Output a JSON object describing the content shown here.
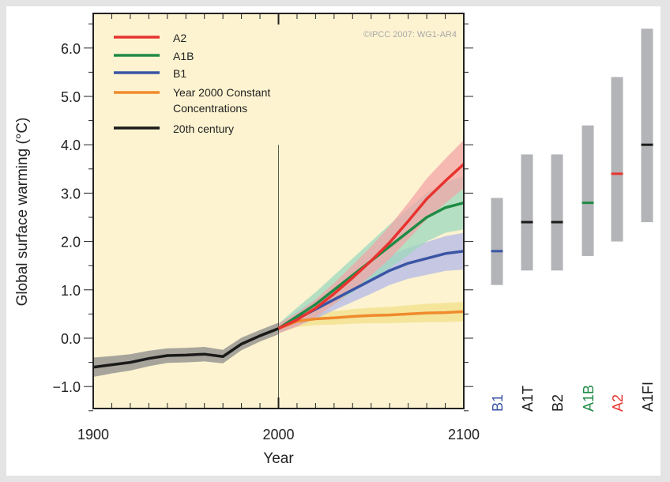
{
  "chart_data": {
    "type": "line",
    "title": "",
    "xlabel": "Year",
    "ylabel": "Global surface warming (°C)",
    "xlim": [
      1900,
      2100
    ],
    "ylim": [
      -1.45,
      6.7
    ],
    "x_ticks": [
      "1900",
      "2000",
      "2100"
    ],
    "y_ticks": [
      {
        "value": 6,
        "label": "6.0"
      },
      {
        "value": 5,
        "label": "5.0"
      },
      {
        "value": 4,
        "label": "4.0"
      },
      {
        "value": 3,
        "label": "3.0"
      },
      {
        "value": 2,
        "label": "2.0"
      },
      {
        "value": 1,
        "label": "1.0"
      },
      {
        "value": 0,
        "label": "0.0"
      },
      {
        "value": -1,
        "label": "−1.0"
      }
    ],
    "copyright": "©IPCC  2007: WG1-AR4",
    "legend_position": "top-left",
    "legend": [
      {
        "label": "A2",
        "color": "#e8332f"
      },
      {
        "label": "A1B",
        "color": "#1f8a45"
      },
      {
        "label": "B1",
        "color": "#3a55a4"
      },
      {
        "label": "Year 2000 Constant",
        "label2": "Concentrations",
        "color": "#f08a2c"
      },
      {
        "label": "20th century",
        "color": "#1a1a1a"
      }
    ],
    "series": [
      {
        "name": "20th century",
        "color": "#1a1a1a",
        "band_color": "#8a8a8a",
        "x": [
          1900,
          1910,
          1920,
          1930,
          1940,
          1950,
          1960,
          1970,
          1980,
          1990,
          2000
        ],
        "values": [
          -0.6,
          -0.55,
          -0.5,
          -0.42,
          -0.36,
          -0.35,
          -0.33,
          -0.38,
          -0.12,
          0.05,
          0.2
        ],
        "band": [
          0.2,
          0.18,
          0.17,
          0.16,
          0.15,
          0.15,
          0.15,
          0.14,
          0.13,
          0.12,
          0.12
        ]
      },
      {
        "name": "Year 2000 Constant Concentrations",
        "color": "#f08a2c",
        "band_color": "#f0e08a",
        "x": [
          2000,
          2010,
          2020,
          2030,
          2040,
          2050,
          2060,
          2070,
          2080,
          2090,
          2100
        ],
        "values": [
          0.2,
          0.35,
          0.4,
          0.42,
          0.45,
          0.47,
          0.48,
          0.5,
          0.52,
          0.53,
          0.55
        ],
        "band": [
          0.1,
          0.12,
          0.13,
          0.14,
          0.15,
          0.16,
          0.17,
          0.18,
          0.19,
          0.2,
          0.2
        ]
      },
      {
        "name": "B1",
        "color": "#3a55a4",
        "band_color": "#b3b8e8",
        "x": [
          2000,
          2010,
          2020,
          2030,
          2040,
          2050,
          2060,
          2070,
          2080,
          2090,
          2100
        ],
        "values": [
          0.2,
          0.4,
          0.6,
          0.8,
          1.0,
          1.2,
          1.4,
          1.55,
          1.65,
          1.75,
          1.8
        ],
        "band": [
          0.1,
          0.15,
          0.2,
          0.22,
          0.25,
          0.28,
          0.3,
          0.32,
          0.34,
          0.36,
          0.38
        ]
      },
      {
        "name": "A1B",
        "color": "#1f8a45",
        "band_color": "#9cd8bd",
        "x": [
          2000,
          2010,
          2020,
          2030,
          2040,
          2050,
          2060,
          2070,
          2080,
          2090,
          2100
        ],
        "values": [
          0.2,
          0.45,
          0.7,
          1.0,
          1.3,
          1.6,
          1.9,
          2.2,
          2.5,
          2.7,
          2.8
        ],
        "band": [
          0.1,
          0.18,
          0.25,
          0.3,
          0.35,
          0.4,
          0.45,
          0.48,
          0.5,
          0.52,
          0.55
        ]
      },
      {
        "name": "A2",
        "color": "#e8332f",
        "band_color": "#f2a6a8",
        "x": [
          2000,
          2010,
          2020,
          2030,
          2040,
          2050,
          2060,
          2070,
          2080,
          2090,
          2100
        ],
        "values": [
          0.2,
          0.38,
          0.62,
          0.92,
          1.25,
          1.6,
          1.98,
          2.42,
          2.88,
          3.25,
          3.6
        ],
        "band": [
          0.1,
          0.14,
          0.18,
          0.22,
          0.26,
          0.3,
          0.34,
          0.38,
          0.42,
          0.46,
          0.5
        ]
      }
    ],
    "likely_ranges_2090_2099": [
      {
        "scenario": "B1",
        "low": 1.1,
        "best": 1.8,
        "high": 2.9,
        "color": "#3a55a4",
        "label_color": "#3a55a4"
      },
      {
        "scenario": "A1T",
        "low": 1.4,
        "best": 2.4,
        "high": 3.8,
        "color": "#1a1a1a",
        "label_color": "#1a1a1a"
      },
      {
        "scenario": "B2",
        "low": 1.4,
        "best": 2.4,
        "high": 3.8,
        "color": "#1a1a1a",
        "label_color": "#1a1a1a"
      },
      {
        "scenario": "A1B",
        "low": 1.7,
        "best": 2.8,
        "high": 4.4,
        "color": "#1f8a45",
        "label_color": "#1f8a45"
      },
      {
        "scenario": "A2",
        "low": 2.0,
        "best": 3.4,
        "high": 5.4,
        "color": "#e8332f",
        "label_color": "#e8332f"
      },
      {
        "scenario": "A1FI",
        "low": 2.4,
        "best": 4.0,
        "high": 6.4,
        "color": "#1a1a1a",
        "label_color": "#1a1a1a"
      }
    ],
    "colors": {
      "plot_background": "#fdf3d0",
      "range_bar": "#b3b4b7"
    }
  }
}
